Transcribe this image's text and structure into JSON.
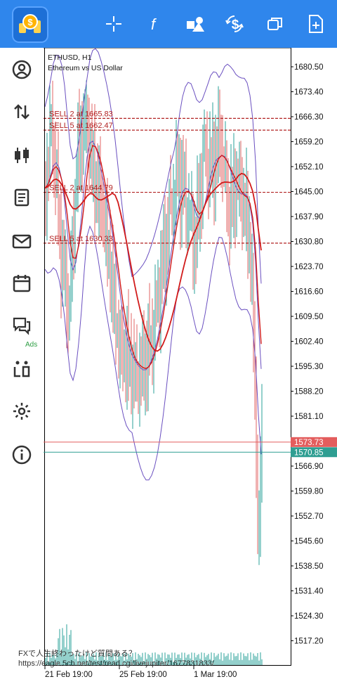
{
  "toolbar": {
    "buttons": [
      {
        "icon": "crosshair-icon"
      },
      {
        "icon": "indicator-f-icon"
      },
      {
        "icon": "objects-icon"
      },
      {
        "icon": "dollar-sync-icon"
      },
      {
        "icon": "windows-icon"
      },
      {
        "icon": "new-chart-icon"
      }
    ],
    "accent": "#2f86ec"
  },
  "sidebar": {
    "items": [
      {
        "icon": "account-icon"
      },
      {
        "icon": "trade-arrows-icon"
      },
      {
        "icon": "candles-icon"
      },
      {
        "icon": "journal-icon"
      },
      {
        "icon": "mail-icon"
      },
      {
        "icon": "calendar-icon",
        "badge": "Ads"
      },
      {
        "icon": "chat-icon"
      },
      {
        "icon": "community-icon"
      },
      {
        "icon": "settings-icon"
      },
      {
        "icon": "info-icon"
      }
    ]
  },
  "chart": {
    "symbol": "ETHUSD, H1",
    "description": "Ethereum vs US Dollar",
    "orders": [
      {
        "label": "SELL 2 at 1665.83",
        "price": 1665.83
      },
      {
        "label": "SELL 5 at 1662.47",
        "price": 1662.47
      },
      {
        "label": "SELL 2 at 1644.79",
        "price": 1644.79
      },
      {
        "label": "SELL 5 at 1630.33",
        "price": 1630.33
      }
    ],
    "price_ticks": [
      "1680.50",
      "1673.40",
      "1666.30",
      "1659.20",
      "1652.10",
      "1645.00",
      "1637.90",
      "1630.80",
      "1623.70",
      "1616.60",
      "1609.50",
      "1602.40",
      "1595.30",
      "1588.20",
      "1581.10",
      "1566.90",
      "1559.80",
      "1552.70",
      "1545.60",
      "1538.50",
      "1531.40",
      "1524.30",
      "1517.20"
    ],
    "ask_price": "1573.73",
    "bid_price": "1570.85",
    "time_labels": [
      "21 Feb 19:00",
      "25 Feb 19:00",
      "1 Mar 19:00"
    ],
    "colors": {
      "order": "#b22222",
      "ma": "#d11a1a",
      "bands": "#6a4fc0",
      "bull": "#2aa198",
      "bear": "#e06666",
      "ask": "#e35d5d",
      "bid": "#2f9e92"
    }
  },
  "watermark": {
    "line1": "FXで人生終わったけど質問ある？",
    "line2": "https://eagle.5ch.net/test/read.cgi/livejupiter/1677831833/"
  }
}
